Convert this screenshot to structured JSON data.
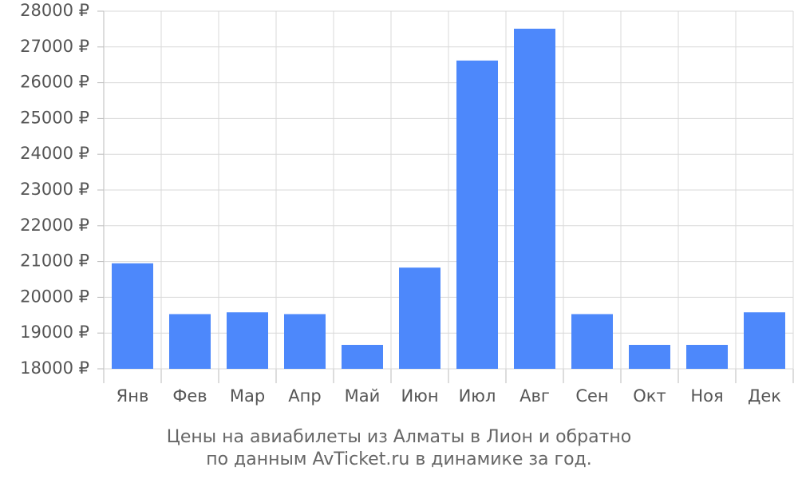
{
  "chart_data": {
    "type": "bar",
    "title": [
      "Цены на авиабилеты из Алматы в Лион и обратно",
      "по данным AvTicket.ru в динамике за год."
    ],
    "categories": [
      "Янв",
      "Фев",
      "Мар",
      "Апр",
      "Май",
      "Июн",
      "Июл",
      "Авг",
      "Сен",
      "Окт",
      "Ноя",
      "Дек"
    ],
    "values": [
      20950,
      19530,
      19580,
      19530,
      18670,
      20830,
      26620,
      27510,
      19530,
      18670,
      18670,
      19580
    ],
    "color": "#4d88fb",
    "ylim": [
      18000,
      28000
    ],
    "yticks": [
      {
        "value": 18000,
        "label": "18000 ₽"
      },
      {
        "value": 19000,
        "label": "19000 ₽"
      },
      {
        "value": 20000,
        "label": "20000 ₽"
      },
      {
        "value": 21000,
        "label": "21000 ₽"
      },
      {
        "value": 22000,
        "label": "22000 ₽"
      },
      {
        "value": 23000,
        "label": "23000 ₽"
      },
      {
        "value": 24000,
        "label": "24000 ₽"
      },
      {
        "value": 25000,
        "label": "25000 ₽"
      },
      {
        "value": 26000,
        "label": "26000 ₽"
      },
      {
        "value": 27000,
        "label": "27000 ₽"
      },
      {
        "value": 28000,
        "label": "28000 ₽"
      }
    ],
    "grid": true
  }
}
